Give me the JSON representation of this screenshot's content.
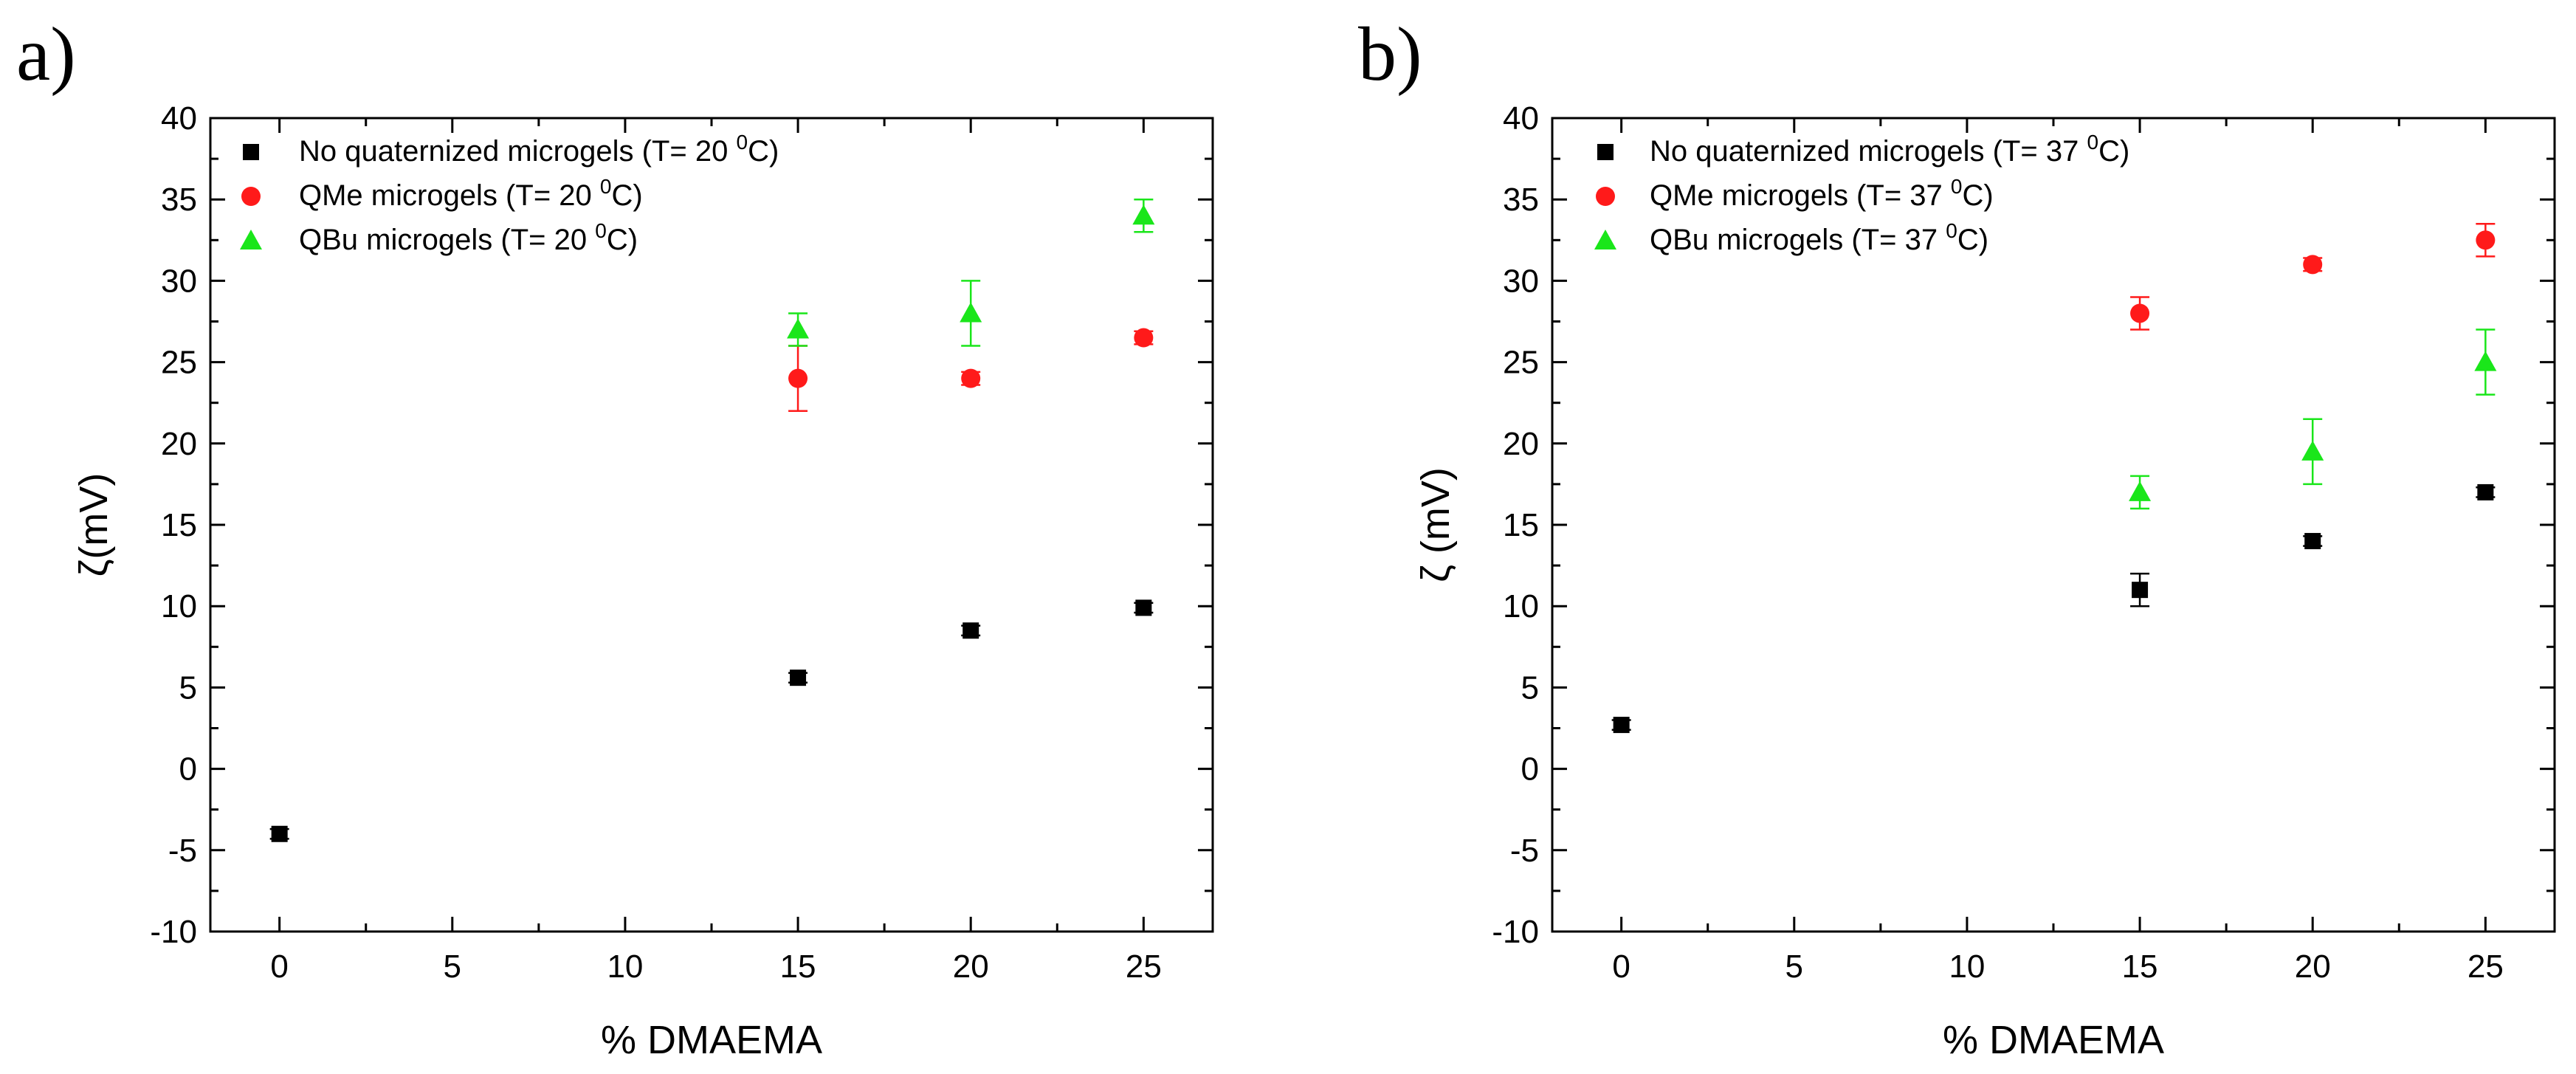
{
  "chart_data": [
    {
      "panel_label": "a)",
      "type": "scatter",
      "xlabel": "% DMAEMA",
      "ylabel": "ζ(mV)",
      "xlim": [
        -2,
        27
      ],
      "ylim": [
        -10,
        40
      ],
      "xticks": [
        0,
        5,
        10,
        15,
        20,
        25
      ],
      "yticks": [
        -10,
        -5,
        0,
        5,
        10,
        15,
        20,
        25,
        30,
        35,
        40
      ],
      "legend_position": "top-left",
      "series": [
        {
          "name": "No quaternized microgels",
          "legend_prefix": "No quaternized microgels (T= 20 ",
          "legend_sup": "0",
          "legend_suffix": "C)",
          "marker": "square",
          "color": "#000000",
          "x": [
            0,
            15,
            20,
            25
          ],
          "y": [
            -4,
            5.6,
            8.5,
            9.9
          ],
          "err": [
            0.3,
            0.3,
            0.3,
            0.3
          ]
        },
        {
          "name": "QMe microgels",
          "legend_prefix": "QMe microgels (T= 20 ",
          "legend_sup": "0",
          "legend_suffix": "C)",
          "marker": "circle",
          "color": "#ff1a1a",
          "x": [
            15,
            20,
            25
          ],
          "y": [
            24,
            24,
            26.5
          ],
          "err": [
            2,
            0.4,
            0.4
          ]
        },
        {
          "name": "QBu microgels",
          "legend_prefix": "QBu microgels (T= 20 ",
          "legend_sup": "0",
          "legend_suffix": "C)",
          "marker": "triangle",
          "color": "#1ae61a",
          "x": [
            15,
            20,
            25
          ],
          "y": [
            27,
            28,
            34
          ],
          "err": [
            1,
            2,
            1
          ]
        }
      ]
    },
    {
      "panel_label": "b)",
      "type": "scatter",
      "xlabel": "% DMAEMA",
      "ylabel": "ζ (mV)",
      "xlim": [
        -2,
        27
      ],
      "ylim": [
        -10,
        40
      ],
      "xticks": [
        0,
        5,
        10,
        15,
        20,
        25
      ],
      "yticks": [
        -10,
        -5,
        0,
        5,
        10,
        15,
        20,
        25,
        30,
        35,
        40
      ],
      "legend_position": "top-left",
      "series": [
        {
          "name": "No quaternized microgels",
          "legend_prefix": "No quaternized microgels (T= 37 ",
          "legend_sup": "0",
          "legend_suffix": "C)",
          "marker": "square",
          "color": "#000000",
          "x": [
            0,
            15,
            20,
            25
          ],
          "y": [
            2.7,
            11,
            14,
            17
          ],
          "err": [
            0.3,
            1,
            0.3,
            0.3
          ]
        },
        {
          "name": "QMe microgels",
          "legend_prefix": "QMe microgels (T= 37 ",
          "legend_sup": "0",
          "legend_suffix": "C)",
          "marker": "circle",
          "color": "#ff1a1a",
          "x": [
            15,
            20,
            25
          ],
          "y": [
            28,
            31,
            32.5
          ],
          "err": [
            1,
            0.4,
            1
          ]
        },
        {
          "name": "QBu microgels",
          "legend_prefix": "QBu microgels (T= 37 ",
          "legend_sup": "0",
          "legend_suffix": "C)",
          "marker": "triangle",
          "color": "#1ae61a",
          "x": [
            15,
            20,
            25
          ],
          "y": [
            17,
            19.5,
            25
          ],
          "err": [
            1,
            2,
            2
          ]
        }
      ]
    }
  ]
}
